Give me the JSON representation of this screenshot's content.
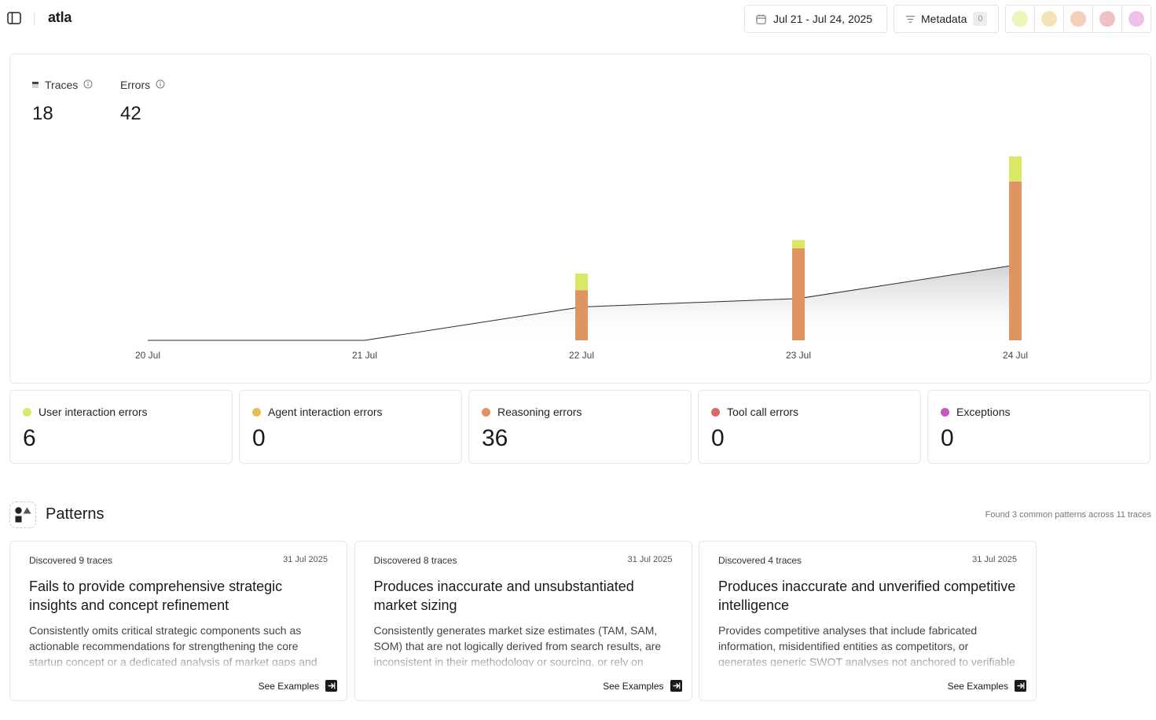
{
  "header": {
    "app_title": "atla",
    "date_range": "Jul 21 - Jul 24, 2025",
    "metadata_label": "Metadata",
    "metadata_count": "0",
    "swatch_colors": [
      "#eef5b8",
      "#f5e3b8",
      "#f5cdb8",
      "#f2c0c4",
      "#eebfe8"
    ]
  },
  "summary": {
    "traces_label": "Traces",
    "traces_value": "18",
    "errors_label": "Errors",
    "errors_value": "42"
  },
  "chart_data": {
    "type": "bar",
    "categories": [
      "20 Jul",
      "21 Jul",
      "22 Jul",
      "23 Jul",
      "24 Jul"
    ],
    "series": [
      {
        "name": "User interaction errors",
        "color": "#dbe863",
        "values": [
          0,
          0,
          2,
          1,
          3
        ]
      },
      {
        "name": "Reasoning errors",
        "color": "#e09464",
        "values": [
          0,
          0,
          6,
          11,
          19
        ]
      }
    ],
    "trend_line": {
      "values": [
        0,
        0,
        4,
        5,
        9
      ],
      "fill": "gradient-gray"
    },
    "ylim": [
      0,
      22
    ],
    "grid": false,
    "legend": "none"
  },
  "categories": [
    {
      "label": "User interaction errors",
      "value": "6",
      "color": "#dde86a"
    },
    {
      "label": "Agent interaction errors",
      "value": "0",
      "color": "#e8be52"
    },
    {
      "label": "Reasoning errors",
      "value": "36",
      "color": "#e3935f"
    },
    {
      "label": "Tool call errors",
      "value": "0",
      "color": "#db6a66"
    },
    {
      "label": "Exceptions",
      "value": "0",
      "color": "#cc55c2"
    }
  ],
  "patterns": {
    "title": "Patterns",
    "summary": "Found 3 common patterns across 11 traces",
    "see_examples_label": "See Examples",
    "items": [
      {
        "discovered": "Discovered 9 traces",
        "date": "31 Jul 2025",
        "title": "Fails to provide comprehensive strategic insights and concept refinement",
        "description": "Consistently omits critical strategic components such as actionable recommendations for strengthening the core startup concept or a dedicated analysis of market gaps and differentiation opportunities."
      },
      {
        "discovered": "Discovered 8 traces",
        "date": "31 Jul 2025",
        "title": "Produces inaccurate and unsubstantiated market sizing",
        "description": "Consistently generates market size estimates (TAM, SAM, SOM) that are not logically derived from search results, are inconsistent in their methodology or sourcing, or rely on unverified assumptions."
      },
      {
        "discovered": "Discovered 4 traces",
        "date": "31 Jul 2025",
        "title": "Produces inaccurate and unverified competitive intelligence",
        "description": "Provides competitive analyses that include fabricated information, misidentified entities as competitors, or generates generic SWOT analyses not anchored to verifiable sources."
      }
    ]
  }
}
